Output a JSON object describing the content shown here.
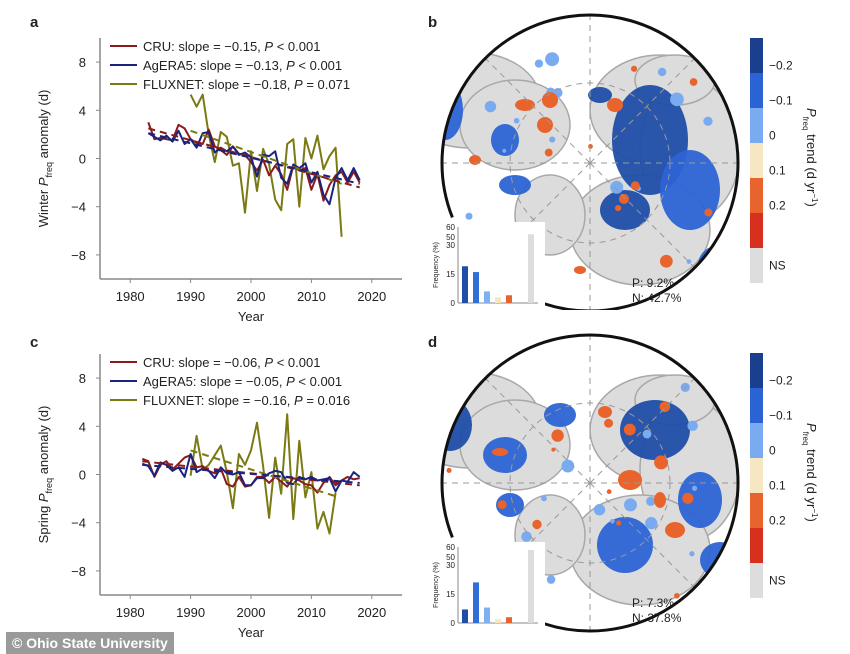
{
  "credit": "© Ohio State University",
  "panels": {
    "a": "a",
    "b": "b",
    "c": "c",
    "d": "d"
  },
  "chart_data": [
    {
      "id": "a",
      "type": "line",
      "title": "",
      "xlabel": "Year",
      "ylabel_prefix": "Winter ",
      "ylabel_var": "P",
      "ylabel_sub": "freq",
      "ylabel_suffix": " anomaly (d)",
      "xlim": [
        1975,
        2025
      ],
      "ylim": [
        -10,
        10
      ],
      "xticks": [
        1980,
        1990,
        2000,
        2010,
        2020
      ],
      "yticks": [
        8,
        4,
        0,
        -4,
        -8
      ],
      "ytick_labels": [
        "8",
        "4",
        "0",
        "−4",
        "−8"
      ],
      "legend_position": "top-left",
      "series": [
        {
          "name": "CRU",
          "legend": "CRU: slope = −0.15, ",
          "p_text": "P",
          "p_rest": " < 0.001",
          "color": "#8b1a1a",
          "x_start": 1983,
          "values": [
            3.0,
            1.6,
            1.7,
            1.6,
            1.5,
            2.8,
            2.5,
            1.6,
            1.3,
            1.2,
            2.4,
            1.0,
            0.7,
            0.3,
            1.0,
            0.4,
            0.3,
            -0.3,
            -1.0,
            -0.1,
            -1.4,
            -0.6,
            -1.3,
            -2.6,
            -0.6,
            -1.0,
            -0.8,
            -2.6,
            -1.3,
            -3.5,
            -2.2,
            -1.4,
            -1.1,
            -2.0,
            -1.1,
            -2.0
          ],
          "trend": [
            2.5,
            -2.4
          ]
        },
        {
          "name": "AgERA5",
          "legend": "AgERA5: slope = −0.13, ",
          "p_text": "P",
          "p_rest": " < 0.001",
          "color": "#1a237e",
          "x_start": 1983,
          "values": [
            2.1,
            1.8,
            1.5,
            1.9,
            1.4,
            2.3,
            1.2,
            1.6,
            0.9,
            2.1,
            2.2,
            0.5,
            0.9,
            0.6,
            1.0,
            0.3,
            0.5,
            0.1,
            -1.5,
            0.3,
            0.2,
            0.6,
            -1.6,
            -2.1,
            -0.5,
            -0.8,
            -0.4,
            -2.0,
            -1.1,
            -3.0,
            -3.8,
            -1.6,
            -0.8,
            -1.8,
            -0.8,
            -1.8
          ],
          "trend": [
            2.1,
            -2.1
          ]
        },
        {
          "name": "FLUXNET",
          "legend": "FLUXNET: slope = −0.18, ",
          "p_text": "P",
          "p_rest": " = 0.071",
          "color": "#7a7a14",
          "x_start": 1990,
          "values": [
            5.3,
            4.3,
            5.3,
            2.0,
            -0.3,
            2.2,
            1.8,
            -0.6,
            -0.4,
            -4.5,
            0.6,
            -2.7,
            0.8,
            -0.5,
            -3.4,
            -4.3,
            1.2,
            1.6,
            -4.0,
            1.7,
            0.0,
            1.9,
            -0.9,
            0.2,
            0.9,
            -6.5
          ],
          "trend": [
            2.3,
            -2.1
          ]
        }
      ]
    },
    {
      "id": "c",
      "type": "line",
      "title": "",
      "xlabel": "Year",
      "ylabel_prefix": "Spring ",
      "ylabel_var": "P",
      "ylabel_sub": "freq",
      "ylabel_suffix": " anomaly (d)",
      "xlim": [
        1975,
        2025
      ],
      "ylim": [
        -10,
        10
      ],
      "xticks": [
        1980,
        1990,
        2000,
        2010,
        2020
      ],
      "yticks": [
        8,
        4,
        0,
        -4,
        -8
      ],
      "ytick_labels": [
        "8",
        "4",
        "0",
        "−4",
        "−8"
      ],
      "legend_position": "top-left",
      "series": [
        {
          "name": "CRU",
          "legend": "CRU: slope = −0.06, ",
          "p_text": "P",
          "p_rest": " < 0.001",
          "color": "#8b1a1a",
          "x_start": 1982,
          "values": [
            1.3,
            1.1,
            -0.2,
            0.8,
            1.1,
            0.4,
            0.9,
            1.4,
            1.6,
            0.6,
            0.7,
            0.3,
            0.1,
            0.5,
            -0.8,
            -1.0,
            -0.2,
            -1.0,
            -0.9,
            -0.2,
            -0.2,
            -0.7,
            -0.2,
            -0.6,
            -1.0,
            -0.3,
            -0.5,
            -0.8,
            -0.9,
            -1.5,
            -0.7,
            -0.2,
            -0.9,
            -0.5,
            -0.2,
            -0.4,
            -0.3
          ],
          "trend": [
            1.1,
            -0.9
          ]
        },
        {
          "name": "AgERA5",
          "legend": "AgERA5: slope = −0.05, ",
          "p_text": "P",
          "p_rest": " < 0.001",
          "color": "#1a237e",
          "x_start": 1982,
          "values": [
            0.9,
            0.7,
            -0.1,
            1.0,
            0.8,
            0.3,
            0.6,
            -0.2,
            1.7,
            0.2,
            0.5,
            0.3,
            -0.3,
            0.6,
            0.1,
            0.0,
            0.2,
            -0.9,
            -0.9,
            -0.3,
            -0.3,
            0.1,
            0.3,
            0.2,
            -0.7,
            -0.8,
            -0.2,
            -0.4,
            -0.2,
            -0.5,
            -0.4,
            -0.3,
            -1.4,
            -0.5,
            -0.6,
            0.2,
            -0.2
          ],
          "trend": [
            0.8,
            -0.7
          ]
        },
        {
          "name": "FLUXNET",
          "legend": "FLUXNET: slope = −0.16, ",
          "p_text": "P",
          "p_rest": " = 0.016",
          "color": "#7a7a14",
          "x_start": 1990,
          "values": [
            -0.1,
            3.2,
            0.4,
            0.8,
            1.6,
            2.4,
            0.2,
            -2.8,
            1.7,
            0.8,
            2.0,
            4.3,
            0.7,
            -3.6,
            1.4,
            -1.6,
            5.0,
            -3.7,
            2.8,
            -1.9,
            0.2,
            -4.5,
            -3.1,
            -4.9,
            -1.5
          ],
          "trend": [
            2.0,
            -1.8
          ]
        }
      ]
    }
  ],
  "maps": [
    {
      "id": "b",
      "p_text": "P: 9.2%",
      "n_text": "N: 42.7%",
      "hist": {
        "ylabel": "Frequency (%)",
        "yticks": [
          "60",
          "50",
          "30",
          "15",
          "0"
        ],
        "bars": [
          {
            "cls": "<-0.2",
            "value": 19,
            "color": "#1f4ea8"
          },
          {
            "cls": "-0.2 to -0.1",
            "value": 16,
            "color": "#2f6fd6"
          },
          {
            "cls": "-0.1 to 0",
            "value": 6,
            "color": "#7fb0f0"
          },
          {
            "cls": "0 to 0.1",
            "value": 3,
            "color": "#f7e6c2"
          },
          {
            "cls": "0.1 to 0.2",
            "value": 4,
            "color": "#e8642c"
          },
          {
            "cls": "NS",
            "value": 48,
            "color": "#dddddd"
          }
        ]
      }
    },
    {
      "id": "d",
      "p_text": "P: 7.3%",
      "n_text": "N: 37.8%",
      "hist": {
        "ylabel": "Frequency (%)",
        "yticks": [
          "60",
          "50",
          "30",
          "15",
          "0"
        ],
        "bars": [
          {
            "cls": "<-0.2",
            "value": 7,
            "color": "#1f4ea8"
          },
          {
            "cls": "-0.2 to -0.1",
            "value": 21,
            "color": "#2f6fd6"
          },
          {
            "cls": "-0.1 to 0",
            "value": 8,
            "color": "#7fb0f0"
          },
          {
            "cls": "0 to 0.1",
            "value": 2,
            "color": "#f7e6c2"
          },
          {
            "cls": "0.1 to 0.2",
            "value": 3,
            "color": "#e8642c"
          },
          {
            "cls": "NS",
            "value": 55,
            "color": "#dddddd"
          }
        ]
      }
    }
  ],
  "colorbar": {
    "title_var": "P",
    "title_sub": "freq",
    "title_rest": " trend (d yr",
    "title_sup": "−1",
    "title_end": ")",
    "swatches": [
      "#1a3f8f",
      "#2c63d4",
      "#7aaaf0",
      "#f7e6c2",
      "#e8642c",
      "#d8301f",
      "#dddddd"
    ],
    "labels": [
      "−0.2",
      "−0.1",
      "0",
      "0.1",
      "0.2",
      "NS"
    ]
  }
}
